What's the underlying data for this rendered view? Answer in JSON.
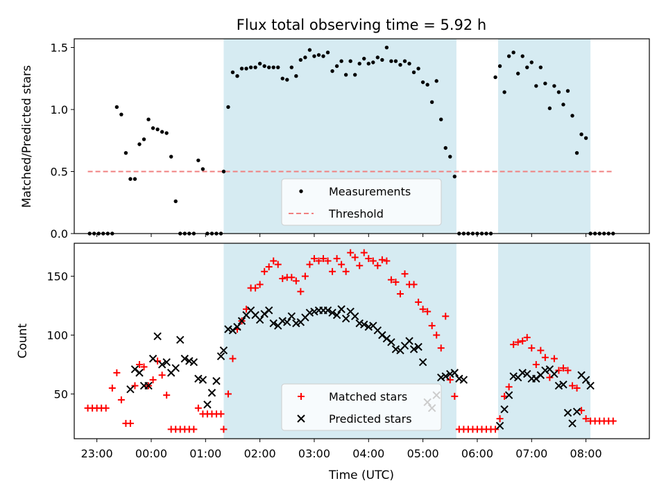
{
  "title": "Flux total observing time = 5.92 h",
  "chart_data": [
    {
      "type": "scatter",
      "title": "Flux total observing time = 5.92 h",
      "ylabel": "Matched/Predicted stars",
      "xlabel": "",
      "ylim": [
        0.0,
        1.57
      ],
      "yticks": [
        "0.0",
        "0.5",
        "1.0",
        "1.5"
      ],
      "legend": {
        "placement": "lower-center",
        "entries": [
          "Measurements",
          "Threshold"
        ]
      },
      "threshold": {
        "name": "Threshold",
        "value": 0.5,
        "x_start": "22:50",
        "x_end": "08:30",
        "color": "#f08080"
      },
      "highlight_intervals": [
        [
          "01:20",
          "05:37"
        ],
        [
          "06:23",
          "08:05"
        ]
      ],
      "series": [
        {
          "name": "Measurements",
          "color": "#000000",
          "x": [
            "22:52",
            "22:57",
            "23:02",
            "23:07",
            "23:12",
            "23:17",
            "23:22",
            "23:27",
            "23:32",
            "23:37",
            "23:42",
            "23:47",
            "23:52",
            "23:57",
            "00:02",
            "00:07",
            "00:12",
            "00:17",
            "00:22",
            "00:27",
            "00:32",
            "00:37",
            "00:42",
            "00:47",
            "00:52",
            "00:57",
            "01:02",
            "01:07",
            "01:12",
            "01:17",
            "01:20",
            "01:25",
            "01:30",
            "01:35",
            "01:40",
            "01:45",
            "01:50",
            "01:55",
            "02:00",
            "02:05",
            "02:10",
            "02:15",
            "02:20",
            "02:25",
            "02:30",
            "02:35",
            "02:40",
            "02:45",
            "02:50",
            "02:55",
            "03:00",
            "03:05",
            "03:10",
            "03:15",
            "03:20",
            "03:25",
            "03:30",
            "03:35",
            "03:40",
            "03:45",
            "03:50",
            "03:55",
            "04:00",
            "04:05",
            "04:10",
            "04:15",
            "04:20",
            "04:25",
            "04:30",
            "04:35",
            "04:40",
            "04:45",
            "04:50",
            "04:55",
            "05:00",
            "05:05",
            "05:10",
            "05:15",
            "05:20",
            "05:25",
            "05:30",
            "05:35",
            "05:40",
            "05:45",
            "05:50",
            "05:55",
            "06:00",
            "06:05",
            "06:10",
            "06:15",
            "06:20",
            "06:25",
            "06:30",
            "06:35",
            "06:40",
            "06:45",
            "06:50",
            "06:55",
            "07:00",
            "07:05",
            "07:10",
            "07:15",
            "07:20",
            "07:25",
            "07:30",
            "07:35",
            "07:40",
            "07:45",
            "07:50",
            "07:55",
            "08:00",
            "08:05",
            "08:10",
            "08:15",
            "08:20",
            "08:25",
            "08:30"
          ],
          "y": [
            0.0,
            0.0,
            0.0,
            0.0,
            0.0,
            0.0,
            1.02,
            0.96,
            0.65,
            0.44,
            0.44,
            0.72,
            0.76,
            0.92,
            0.85,
            0.84,
            0.82,
            0.81,
            0.62,
            0.26,
            0.0,
            0.0,
            0.0,
            0.0,
            0.59,
            0.52,
            0.0,
            0.0,
            0.0,
            0.0,
            0.5,
            1.02,
            1.3,
            1.27,
            1.33,
            1.33,
            1.34,
            1.34,
            1.37,
            1.35,
            1.34,
            1.34,
            1.34,
            1.25,
            1.24,
            1.34,
            1.27,
            1.4,
            1.42,
            1.48,
            1.43,
            1.44,
            1.43,
            1.46,
            1.31,
            1.35,
            1.39,
            1.28,
            1.39,
            1.28,
            1.37,
            1.41,
            1.37,
            1.38,
            1.42,
            1.4,
            1.5,
            1.39,
            1.39,
            1.36,
            1.39,
            1.37,
            1.3,
            1.33,
            1.22,
            1.2,
            1.06,
            1.23,
            0.92,
            0.69,
            0.62,
            0.46,
            0.0,
            0.0,
            0.0,
            0.0,
            0.0,
            0.0,
            0.0,
            0.0,
            1.26,
            1.35,
            1.14,
            1.43,
            1.46,
            1.29,
            1.43,
            1.34,
            1.38,
            1.19,
            1.34,
            1.21,
            1.01,
            1.19,
            1.14,
            1.04,
            1.15,
            0.95,
            0.65,
            0.8,
            0.77,
            0.0,
            0.0,
            0.0,
            0.0,
            0.0,
            0.0
          ]
        }
      ]
    },
    {
      "type": "scatter",
      "title": "",
      "ylabel": "Count",
      "xlabel": "Time (UTC)",
      "ylim": [
        12,
        178
      ],
      "yticks": [
        "50",
        "100",
        "150"
      ],
      "xticks": [
        "23:00",
        "00:00",
        "01:00",
        "02:00",
        "03:00",
        "04:00",
        "05:00",
        "06:00",
        "07:00",
        "08:00"
      ],
      "legend": {
        "placement": "lower-center",
        "entries": [
          "Matched stars",
          "Predicted stars"
        ]
      },
      "highlight_intervals": [
        [
          "01:20",
          "05:37"
        ],
        [
          "06:23",
          "08:05"
        ]
      ],
      "series": [
        {
          "name": "Matched stars",
          "color": "#ff0000",
          "marker": "+",
          "x": [
            "22:50",
            "22:55",
            "23:00",
            "23:05",
            "23:10",
            "23:17",
            "23:22",
            "23:27",
            "23:32",
            "23:37",
            "23:42",
            "23:47",
            "23:52",
            "23:57",
            "00:02",
            "00:07",
            "00:12",
            "00:17",
            "00:22",
            "00:27",
            "00:32",
            "00:37",
            "00:42",
            "00:47",
            "00:52",
            "00:57",
            "01:02",
            "01:07",
            "01:12",
            "01:17",
            "01:20",
            "01:25",
            "01:30",
            "01:35",
            "01:40",
            "01:45",
            "01:50",
            "01:55",
            "02:00",
            "02:05",
            "02:10",
            "02:15",
            "02:20",
            "02:25",
            "02:30",
            "02:35",
            "02:40",
            "02:45",
            "02:50",
            "02:55",
            "03:00",
            "03:05",
            "03:10",
            "03:15",
            "03:20",
            "03:25",
            "03:30",
            "03:35",
            "03:40",
            "03:45",
            "03:50",
            "03:55",
            "04:00",
            "04:05",
            "04:10",
            "04:15",
            "04:20",
            "04:25",
            "04:30",
            "04:35",
            "04:40",
            "04:45",
            "04:50",
            "04:55",
            "05:00",
            "05:05",
            "05:10",
            "05:15",
            "05:20",
            "05:25",
            "05:30",
            "05:35",
            "05:40",
            "05:45",
            "05:50",
            "05:55",
            "06:00",
            "06:05",
            "06:10",
            "06:15",
            "06:20",
            "06:25",
            "06:30",
            "06:35",
            "06:40",
            "06:45",
            "06:50",
            "06:55",
            "07:00",
            "07:05",
            "07:10",
            "07:15",
            "07:20",
            "07:25",
            "07:30",
            "07:35",
            "07:40",
            "07:45",
            "07:50",
            "07:55",
            "08:00",
            "08:05",
            "08:10",
            "08:15",
            "08:20",
            "08:25",
            "08:30"
          ],
          "y": [
            38,
            38,
            38,
            38,
            38,
            55,
            68,
            45,
            25,
            25,
            57,
            75,
            73,
            57,
            62,
            78,
            66,
            49,
            20,
            20,
            20,
            20,
            20,
            20,
            38,
            33,
            33,
            33,
            33,
            33,
            20,
            50,
            80,
            105,
            112,
            122,
            140,
            140,
            143,
            154,
            158,
            163,
            160,
            148,
            149,
            149,
            146,
            137,
            150,
            160,
            165,
            163,
            165,
            163,
            154,
            165,
            160,
            154,
            170,
            166,
            159,
            170,
            165,
            163,
            159,
            164,
            163,
            147,
            145,
            135,
            152,
            143,
            143,
            128,
            122,
            120,
            108,
            100,
            89,
            116,
            62,
            48,
            20,
            20,
            20,
            20,
            20,
            20,
            20,
            20,
            20,
            29,
            48,
            56,
            92,
            94,
            95,
            98,
            89,
            75,
            87,
            81,
            64,
            80,
            70,
            72,
            70,
            57,
            55,
            36,
            29,
            27,
            27,
            27,
            27,
            27,
            27
          ]
        },
        {
          "name": "Predicted stars",
          "color": "#000000",
          "marker": "x",
          "x": [
            "23:37",
            "23:42",
            "23:47",
            "23:52",
            "23:57",
            "00:02",
            "00:07",
            "00:12",
            "00:17",
            "00:22",
            "00:27",
            "00:32",
            "00:37",
            "00:42",
            "00:47",
            "00:52",
            "00:57",
            "01:02",
            "01:07",
            "01:12",
            "01:17",
            "01:20",
            "01:25",
            "01:30",
            "01:35",
            "01:40",
            "01:45",
            "01:50",
            "01:55",
            "02:00",
            "02:05",
            "02:10",
            "02:15",
            "02:20",
            "02:25",
            "02:30",
            "02:35",
            "02:40",
            "02:45",
            "02:50",
            "02:55",
            "03:00",
            "03:05",
            "03:10",
            "03:15",
            "03:20",
            "03:25",
            "03:30",
            "03:35",
            "03:40",
            "03:45",
            "03:50",
            "03:55",
            "04:00",
            "04:05",
            "04:10",
            "04:15",
            "04:20",
            "04:25",
            "04:30",
            "04:35",
            "04:40",
            "04:45",
            "04:50",
            "04:55",
            "05:00",
            "05:05",
            "05:10",
            "05:15",
            "05:20",
            "05:25",
            "05:30",
            "05:35",
            "05:40",
            "05:45",
            "06:25",
            "06:30",
            "06:35",
            "06:40",
            "06:45",
            "06:50",
            "06:55",
            "07:00",
            "07:05",
            "07:10",
            "07:15",
            "07:20",
            "07:25",
            "07:30",
            "07:35",
            "07:40",
            "07:45",
            "07:50",
            "07:55",
            "08:00",
            "08:05"
          ],
          "y": [
            54,
            71,
            68,
            57,
            57,
            80,
            99,
            75,
            77,
            68,
            72,
            96,
            80,
            78,
            77,
            63,
            62,
            41,
            51,
            61,
            82,
            87,
            105,
            104,
            107,
            112,
            117,
            121,
            117,
            113,
            118,
            121,
            110,
            108,
            112,
            111,
            116,
            110,
            111,
            115,
            119,
            120,
            121,
            121,
            121,
            119,
            117,
            122,
            114,
            120,
            116,
            110,
            109,
            107,
            108,
            104,
            100,
            97,
            94,
            88,
            87,
            91,
            95,
            88,
            90,
            77,
            43,
            38,
            49,
            64,
            65,
            67,
            68,
            63,
            62,
            23,
            37,
            49,
            65,
            64,
            68,
            67,
            63,
            63,
            66,
            70,
            71,
            67,
            57,
            58,
            34,
            25,
            35,
            66,
            62,
            57
          ]
        }
      ]
    }
  ]
}
